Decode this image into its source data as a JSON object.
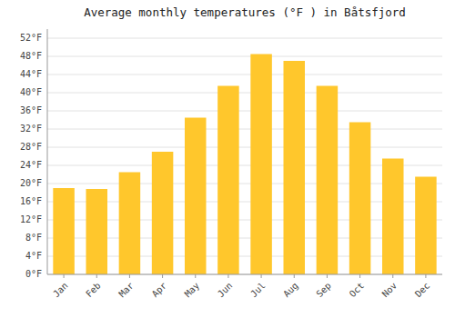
{
  "chart_data": {
    "type": "bar",
    "title": "Average monthly temperatures (°F ) in Båtsfjord",
    "categories": [
      "Jan",
      "Feb",
      "Mar",
      "Apr",
      "May",
      "Jun",
      "Jul",
      "Aug",
      "Sep",
      "Oct",
      "Nov",
      "Dec"
    ],
    "values": [
      19.0,
      18.8,
      22.5,
      27.0,
      34.5,
      41.5,
      48.5,
      47.0,
      41.5,
      33.5,
      25.5,
      21.5
    ],
    "color": "#FFC72C",
    "ylim": [
      0,
      54
    ],
    "yticks": [
      {
        "value": 0,
        "label": "0°F"
      },
      {
        "value": 4,
        "label": "4°F"
      },
      {
        "value": 8,
        "label": "8°F"
      },
      {
        "value": 12,
        "label": "12°F"
      },
      {
        "value": 16,
        "label": "16°F"
      },
      {
        "value": 20,
        "label": "20°F"
      },
      {
        "value": 24,
        "label": "24°F"
      },
      {
        "value": 28,
        "label": "28°F"
      },
      {
        "value": 32,
        "label": "32°F"
      },
      {
        "value": 36,
        "label": "36°F"
      },
      {
        "value": 40,
        "label": "40°F"
      },
      {
        "value": 44,
        "label": "44°F"
      },
      {
        "value": 48,
        "label": "48°F"
      },
      {
        "value": 52,
        "label": "52°F"
      }
    ],
    "grid": true
  }
}
